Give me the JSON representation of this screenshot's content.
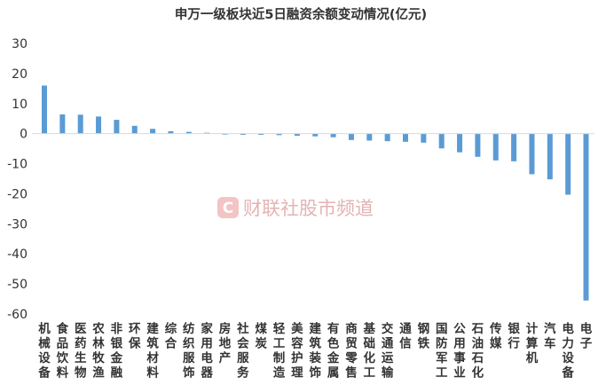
{
  "chart_data": {
    "type": "bar",
    "title": "申万一级板块近5日融资余额变动情况(亿元)",
    "xlabel": "",
    "ylabel": "",
    "ylim": [
      -60,
      30
    ],
    "yticks": [
      30,
      20,
      10,
      0,
      -10,
      -20,
      -30,
      -40,
      -50,
      -60
    ],
    "grid": false,
    "legend": "none",
    "bar_color": "#5b9bd5",
    "categories": [
      "机械设备",
      "食品饮料",
      "医药生物",
      "农林牧渔",
      "非银金融",
      "环保",
      "建筑材料",
      "综合",
      "纺织服饰",
      "家用电器",
      "房地产",
      "社会服务",
      "煤炭",
      "轻工制造",
      "美容护理",
      "建筑装饰",
      "有色金属",
      "商贸零售",
      "基础化工",
      "交通运输",
      "通信",
      "钢铁",
      "国防军工",
      "公用事业",
      "石油石化",
      "传媒",
      "银行",
      "计算机",
      "汽车",
      "电力设备",
      "电子"
    ],
    "values": [
      16.0,
      6.4,
      6.3,
      5.7,
      4.6,
      2.6,
      1.6,
      0.8,
      0.6,
      0.3,
      -0.3,
      -0.4,
      -0.4,
      -0.5,
      -0.7,
      -0.9,
      -1.2,
      -2.1,
      -2.3,
      -2.5,
      -2.7,
      -3.0,
      -4.9,
      -6.2,
      -7.7,
      -8.9,
      -9.2,
      -13.5,
      -15.2,
      -20.3,
      -55.5
    ]
  },
  "watermark": {
    "logo_letter": "C",
    "text": "财联社股市频道",
    "color": "#e07a7a"
  }
}
